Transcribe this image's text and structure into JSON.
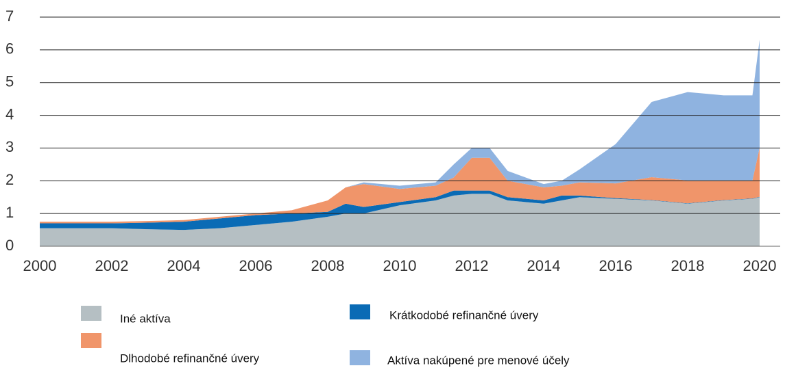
{
  "chart_data": {
    "type": "stacked_area",
    "x": [
      2000,
      2001,
      2002,
      2003,
      2004,
      2005,
      2006,
      2007,
      2008,
      2008.5,
      2009,
      2010,
      2011,
      2011.5,
      2012,
      2012.5,
      2013,
      2014,
      2014.5,
      2015,
      2016,
      2017,
      2018,
      2019,
      2019.8,
      2020
    ],
    "series": [
      {
        "name": "Iné aktíva",
        "color": "#b5bfc3",
        "values": [
          0.55,
          0.55,
          0.55,
          0.52,
          0.5,
          0.55,
          0.65,
          0.75,
          0.9,
          1.0,
          1.0,
          1.25,
          1.4,
          1.55,
          1.6,
          1.6,
          1.4,
          1.3,
          1.4,
          1.5,
          1.45,
          1.4,
          1.3,
          1.4,
          1.45,
          1.5
        ]
      },
      {
        "name": "Krátkodobé refinančné úvery",
        "color": "#0a6bb5",
        "values": [
          0.15,
          0.15,
          0.15,
          0.2,
          0.25,
          0.3,
          0.3,
          0.25,
          0.15,
          0.3,
          0.2,
          0.1,
          0.1,
          0.15,
          0.1,
          0.1,
          0.1,
          0.1,
          0.15,
          0.05,
          0.02,
          0.01,
          0.01,
          0.01,
          0.01,
          0.01
        ]
      },
      {
        "name": "Dlhodobé refinančné úvery",
        "color": "#f0956a",
        "values": [
          0.05,
          0.05,
          0.05,
          0.05,
          0.05,
          0.05,
          0.05,
          0.1,
          0.35,
          0.5,
          0.7,
          0.4,
          0.35,
          0.4,
          1.0,
          1.0,
          0.5,
          0.4,
          0.3,
          0.4,
          0.45,
          0.7,
          0.7,
          0.6,
          0.55,
          1.5
        ]
      },
      {
        "name": "Aktíva nakúpené pre menové účely",
        "color": "#8fb3e0",
        "values": [
          0,
          0,
          0,
          0,
          0,
          0,
          0,
          0,
          0,
          0,
          0.05,
          0.1,
          0.1,
          0.4,
          0.3,
          0.3,
          0.3,
          0.1,
          0.15,
          0.4,
          1.2,
          2.3,
          2.7,
          2.6,
          2.6,
          3.3
        ]
      }
    ],
    "xlim": [
      2000,
      2020
    ],
    "xticks": [
      2000,
      2002,
      2004,
      2006,
      2008,
      2010,
      2012,
      2014,
      2016,
      2018,
      2020
    ],
    "ylim": [
      0,
      7
    ],
    "yticks": [
      0,
      1,
      2,
      3,
      4,
      5,
      6,
      7
    ],
    "grid": true
  }
}
